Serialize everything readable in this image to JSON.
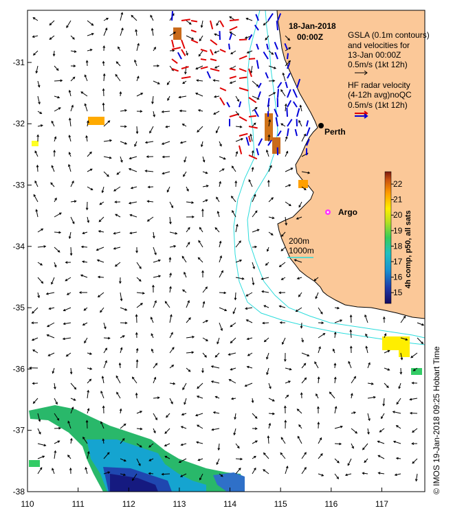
{
  "header": {
    "date": "18-Jan-2018",
    "time": "00:00Z"
  },
  "legend": {
    "gsla_line1": "GSLA (0.1m contours)",
    "gsla_line2": "and velocities for",
    "gsla_line3": "13-Jan 00:00Z",
    "gsla_scale": "0.5m/s (1kt 12h)",
    "hf_line1": "HF radar velocity",
    "hf_line2": "(4-12h avg)noQC",
    "hf_scale": "0.5m/s (1kt 12h)",
    "iso_200": "200m",
    "iso_1000": "1000m"
  },
  "places": {
    "perth": "Perth",
    "argo": "Argo"
  },
  "colorbar": {
    "label": "4h comp, p50, all sats",
    "ticks": [
      "22",
      "21",
      "20",
      "19",
      "18",
      "17",
      "16",
      "15"
    ],
    "min": 14.3,
    "max": 22.8
  },
  "axes": {
    "x_ticks": [
      "110",
      "111",
      "112",
      "113",
      "114",
      "115",
      "116",
      "117"
    ],
    "y_ticks": [
      "-31",
      "-32",
      "-33",
      "-34",
      "-35",
      "-36",
      "-37",
      "-38"
    ],
    "xlim": [
      110.0,
      117.85
    ],
    "ylim": [
      -38.0,
      -30.15
    ]
  },
  "credit": "© IMOS 19-Jan-2018 09:25 Hobart Time",
  "colors": {
    "land": "#fbc898",
    "isobath": "#2adcdc",
    "hf_arrow": "#e00000",
    "hf_arrow_2": "#0000d8",
    "argo_marker": "#ff33ff"
  }
}
